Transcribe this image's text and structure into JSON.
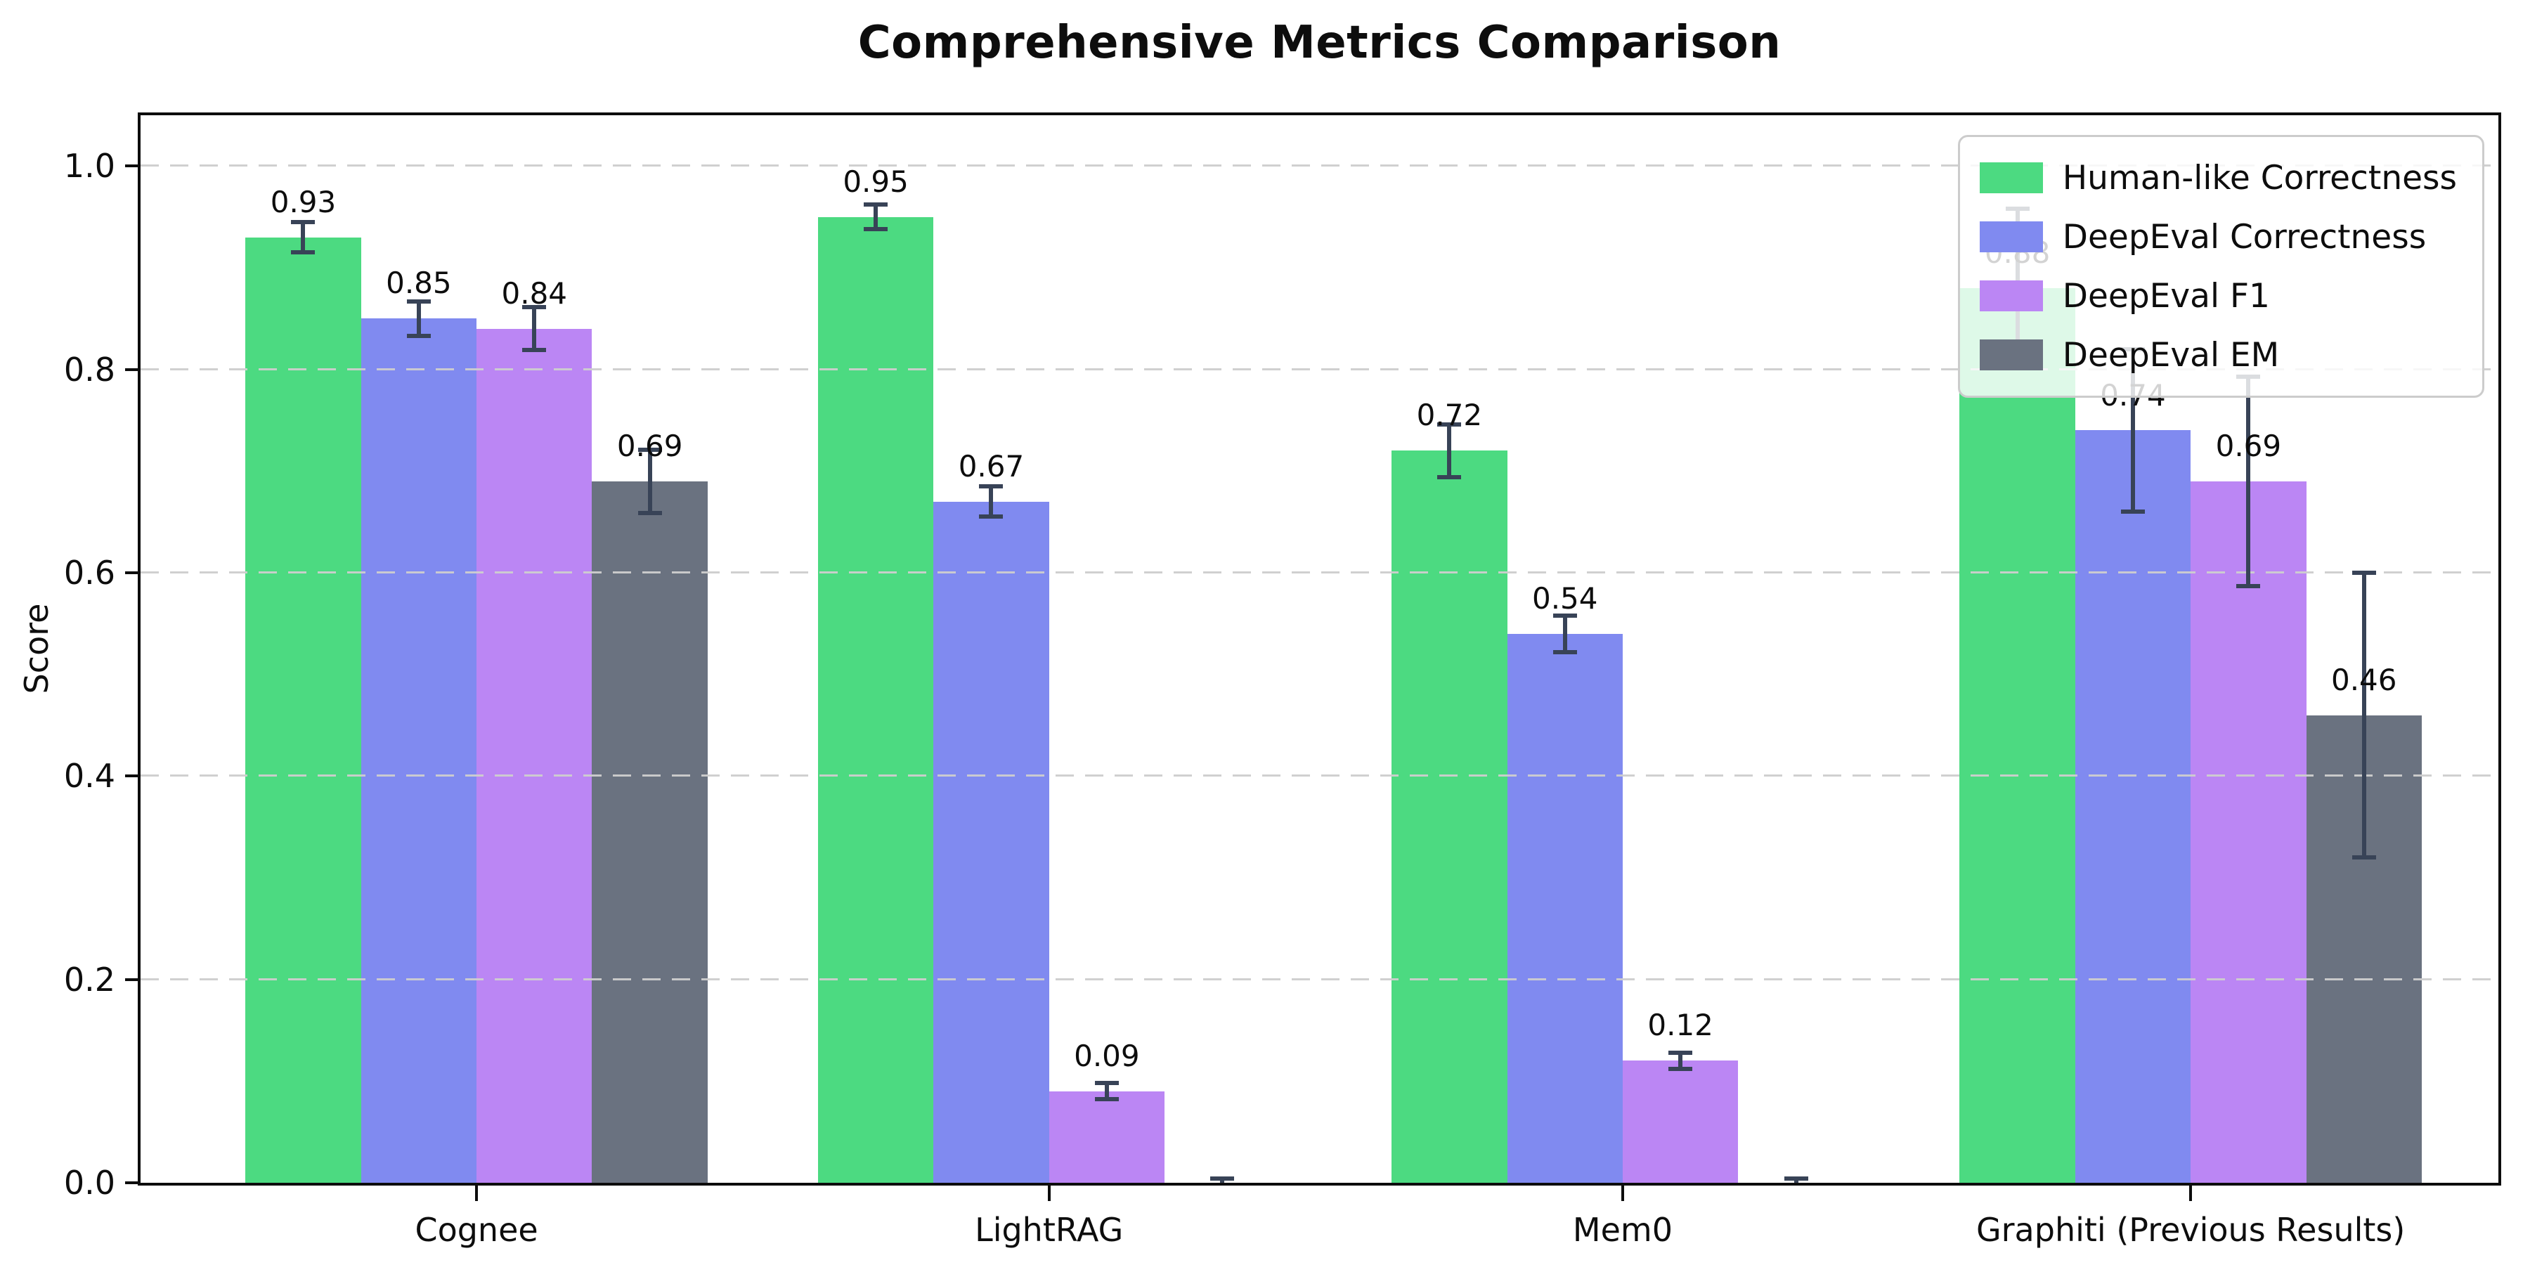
{
  "chart_data": {
    "type": "bar",
    "title": "Comprehensive Metrics Comparison",
    "xlabel": "",
    "ylabel": "Score",
    "ylim": [
      0,
      1.05
    ],
    "grid": "horizontal dashed, drawn over bars",
    "legend_position": "upper right",
    "background": "#ffffff",
    "spine_color": "#0d0d0d",
    "grid_color": "#cecece",
    "error_bar_color": "#384357",
    "ytick_values": [
      0.0,
      0.2,
      0.4,
      0.6,
      0.8,
      1.0
    ],
    "ytick_labels": [
      "0.0",
      "0.2",
      "0.4",
      "0.6",
      "0.8",
      "1.0"
    ],
    "categories": [
      "Cognee",
      "LightRAG",
      "Mem0",
      "Graphiti (Previous Results)"
    ],
    "series": [
      {
        "name": "Human-like Correctness",
        "color": "#4cda81",
        "values": [
          0.93,
          0.95,
          0.72,
          0.88
        ],
        "errors": [
          0.015,
          0.012,
          0.026,
          0.078
        ],
        "labels": [
          "0.93",
          "0.95",
          "0.72",
          "0.88"
        ]
      },
      {
        "name": "DeepEval Correctness",
        "color": "#808af0",
        "values": [
          0.85,
          0.67,
          0.54,
          0.74
        ],
        "errors": [
          0.017,
          0.015,
          0.018,
          0.08
        ],
        "labels": [
          "0.85",
          "0.67",
          "0.54",
          "0.74"
        ]
      },
      {
        "name": "DeepEval F1",
        "color": "#bb86f4",
        "values": [
          0.84,
          0.09,
          0.12,
          0.69
        ],
        "errors": [
          0.021,
          0.008,
          0.008,
          0.103
        ],
        "labels": [
          "0.84",
          "0.09",
          "0.12",
          "0.69"
        ]
      },
      {
        "name": "DeepEval EM",
        "color": "#6a7280",
        "values": [
          0.69,
          0.0,
          0.0,
          0.46
        ],
        "errors": [
          0.031,
          0.004,
          0.004,
          0.14
        ],
        "labels": [
          "0.69",
          "",
          "",
          "0.46"
        ]
      }
    ]
  }
}
